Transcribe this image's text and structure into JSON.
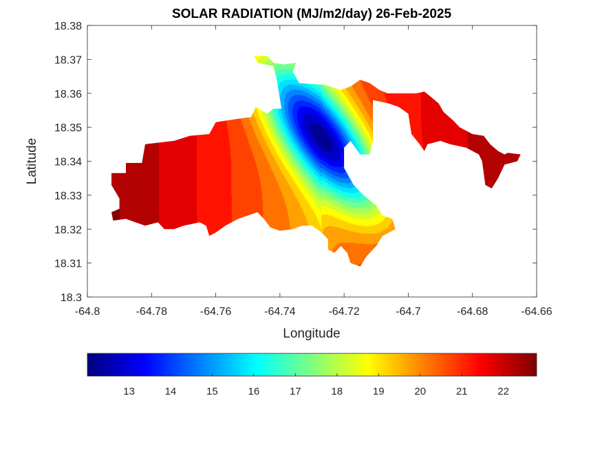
{
  "chart_data": {
    "type": "heatmap",
    "title": "SOLAR RADIATION (MJ/m2/day) 26-Feb-2025",
    "xlabel": "Longitude",
    "ylabel": "Latitude",
    "xlim": [
      -64.8,
      -64.66
    ],
    "ylim": [
      18.3,
      18.38
    ],
    "xticks": [
      "-64.8",
      "-64.78",
      "-64.76",
      "-64.74",
      "-64.72",
      "-64.7",
      "-64.68",
      "-64.66"
    ],
    "yticks": [
      "18.3",
      "18.31",
      "18.32",
      "18.33",
      "18.34",
      "18.35",
      "18.36",
      "18.37",
      "18.38"
    ],
    "colormap": "jet",
    "clim": [
      12.0,
      22.8
    ],
    "colorbar": {
      "location": "bottom",
      "ticks": [
        "13",
        "14",
        "15",
        "16",
        "17",
        "18",
        "19",
        "20",
        "21",
        "22"
      ]
    },
    "field": {
      "minimum": {
        "lon": -64.727,
        "lat": 18.347,
        "value": 12.2
      },
      "west_end": {
        "lon": -64.79,
        "value": 22.5
      },
      "east_islet": {
        "lon": -64.668,
        "value": 22.4
      }
    },
    "landmask": [
      [
        -64.7925,
        18.3365
      ],
      [
        -64.788,
        18.3365
      ],
      [
        -64.788,
        18.3395
      ],
      [
        -64.783,
        18.3395
      ],
      [
        -64.782,
        18.345
      ],
      [
        -64.773,
        18.346
      ],
      [
        -64.768,
        18.3475
      ],
      [
        -64.762,
        18.348
      ],
      [
        -64.76,
        18.3515
      ],
      [
        -64.753,
        18.3525
      ],
      [
        -64.749,
        18.353
      ],
      [
        -64.7475,
        18.356
      ],
      [
        -64.744,
        18.354
      ],
      [
        -64.742,
        18.3555
      ],
      [
        -64.7395,
        18.3555
      ],
      [
        -64.741,
        18.364
      ],
      [
        -64.742,
        18.368
      ],
      [
        -64.747,
        18.369
      ],
      [
        -64.748,
        18.371
      ],
      [
        -64.744,
        18.371
      ],
      [
        -64.742,
        18.369
      ],
      [
        -64.739,
        18.3685
      ],
      [
        -64.735,
        18.369
      ],
      [
        -64.736,
        18.3665
      ],
      [
        -64.734,
        18.363
      ],
      [
        -64.726,
        18.3625
      ],
      [
        -64.721,
        18.361
      ],
      [
        -64.718,
        18.362
      ],
      [
        -64.715,
        18.364
      ],
      [
        -64.712,
        18.363
      ],
      [
        -64.709,
        18.361
      ],
      [
        -64.7065,
        18.36
      ],
      [
        -64.6975,
        18.36
      ],
      [
        -64.695,
        18.3605
      ],
      [
        -64.693,
        18.359
      ],
      [
        -64.6905,
        18.357
      ],
      [
        -64.689,
        18.3545
      ],
      [
        -64.686,
        18.352
      ],
      [
        -64.684,
        18.35
      ],
      [
        -64.68,
        18.348
      ],
      [
        -64.6765,
        18.3475
      ],
      [
        -64.6745,
        18.345
      ],
      [
        -64.672,
        18.343
      ],
      [
        -64.67,
        18.342
      ],
      [
        -64.669,
        18.3425
      ],
      [
        -64.665,
        18.342
      ],
      [
        -64.666,
        18.34
      ],
      [
        -64.67,
        18.339
      ],
      [
        -64.672,
        18.335
      ],
      [
        -64.674,
        18.332
      ],
      [
        -64.676,
        18.333
      ],
      [
        -64.677,
        18.34
      ],
      [
        -64.678,
        18.342
      ],
      [
        -64.682,
        18.344
      ],
      [
        -64.687,
        18.345
      ],
      [
        -64.69,
        18.346
      ],
      [
        -64.694,
        18.345
      ],
      [
        -64.695,
        18.343
      ],
      [
        -64.6965,
        18.345
      ],
      [
        -64.699,
        18.348
      ],
      [
        -64.7,
        18.354
      ],
      [
        -64.703,
        18.356
      ],
      [
        -64.706,
        18.357
      ],
      [
        -64.711,
        18.358
      ],
      [
        -64.711,
        18.346
      ],
      [
        -64.712,
        18.342
      ],
      [
        -64.715,
        18.342
      ],
      [
        -64.718,
        18.346
      ],
      [
        -64.72,
        18.344
      ],
      [
        -64.72,
        18.338
      ],
      [
        -64.717,
        18.333
      ],
      [
        -64.714,
        18.33
      ],
      [
        -64.71,
        18.327
      ],
      [
        -64.708,
        18.324
      ],
      [
        -64.705,
        18.323
      ],
      [
        -64.704,
        18.32
      ],
      [
        -64.708,
        18.318
      ],
      [
        -64.71,
        18.315
      ],
      [
        -64.713,
        18.312
      ],
      [
        -64.715,
        18.309
      ],
      [
        -64.718,
        18.31
      ],
      [
        -64.719,
        18.313
      ],
      [
        -64.721,
        18.315
      ],
      [
        -64.723,
        18.313
      ],
      [
        -64.725,
        18.314
      ],
      [
        -64.725,
        18.317
      ],
      [
        -64.727,
        18.319
      ],
      [
        -64.73,
        18.321
      ],
      [
        -64.733,
        18.321
      ],
      [
        -64.736,
        18.32
      ],
      [
        -64.74,
        18.3195
      ],
      [
        -64.743,
        18.3205
      ],
      [
        -64.745,
        18.323
      ],
      [
        -64.747,
        18.325
      ],
      [
        -64.75,
        18.324
      ],
      [
        -64.753,
        18.323
      ],
      [
        -64.757,
        18.321
      ],
      [
        -64.76,
        18.319
      ],
      [
        -64.762,
        18.318
      ],
      [
        -64.763,
        18.321
      ],
      [
        -64.765,
        18.322
      ],
      [
        -64.77,
        18.321
      ],
      [
        -64.773,
        18.32
      ],
      [
        -64.776,
        18.32
      ],
      [
        -64.778,
        18.322
      ],
      [
        -64.782,
        18.321
      ],
      [
        -64.785,
        18.322
      ],
      [
        -64.788,
        18.323
      ],
      [
        -64.792,
        18.3225
      ],
      [
        -64.7925,
        18.325
      ],
      [
        -64.79,
        18.326
      ],
      [
        -64.79,
        18.329
      ],
      [
        -64.7925,
        18.333
      ]
    ]
  }
}
